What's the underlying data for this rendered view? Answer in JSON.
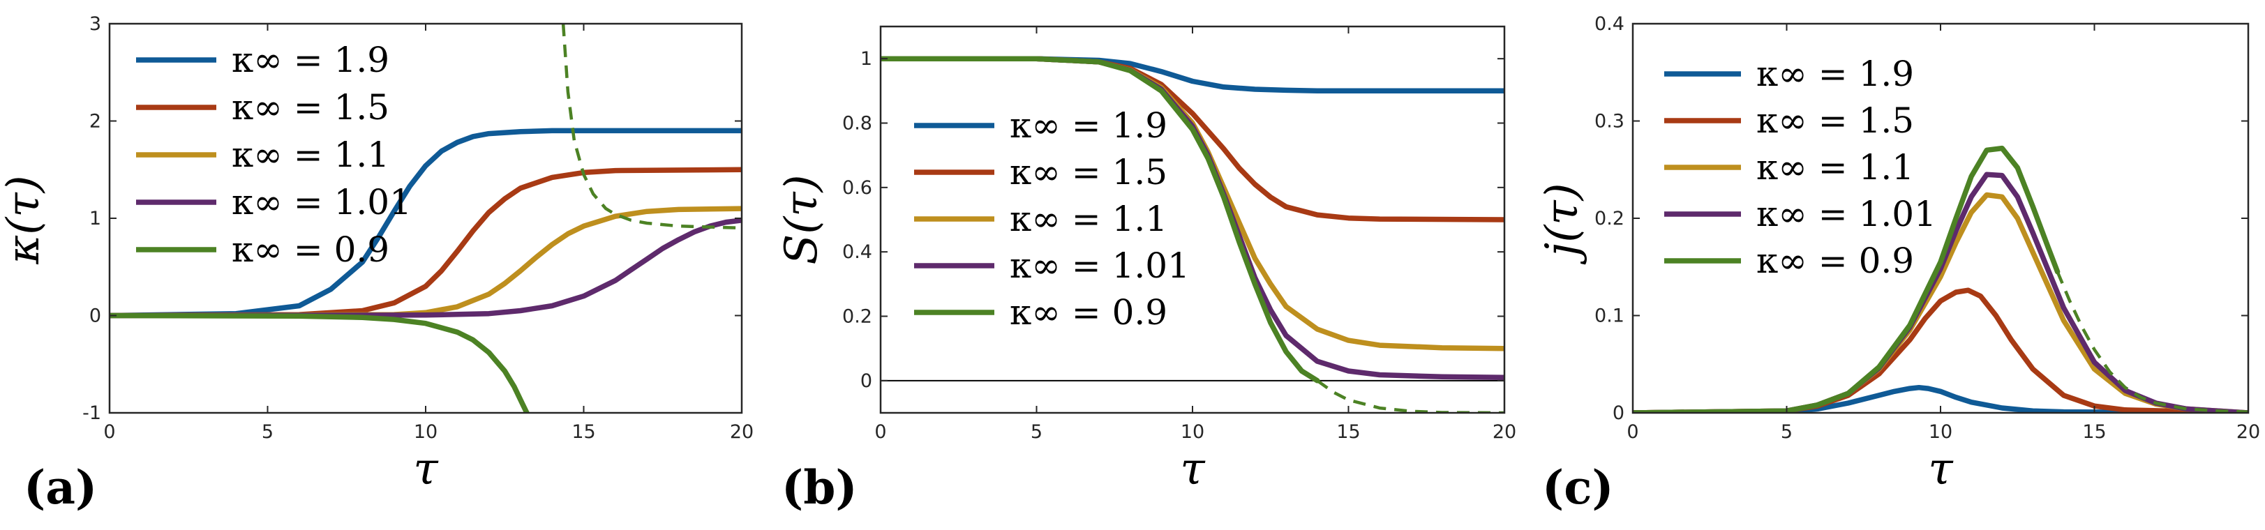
{
  "colors": {
    "kinf_1_9": "#0F5A96",
    "kinf_1_5": "#A83A14",
    "kinf_1_1": "#BE8F1E",
    "kinf_1_01": "#5E2A6C",
    "kinf_0_9": "#4C8224"
  },
  "chart_data": [
    {
      "panel_label": "(a)",
      "type": "line",
      "xlabel": "τ",
      "ylabel": "κ(τ)",
      "xlim": [
        0,
        20
      ],
      "ylim": [
        -1,
        3
      ],
      "xticks": [
        0,
        5,
        10,
        15,
        20
      ],
      "yticks": [
        -1,
        0,
        1,
        2,
        3
      ],
      "legend_position": "top-left",
      "series": [
        {
          "name": "κ∞ = 1.9",
          "color_key": "kinf_1_9",
          "style": "solid",
          "x": [
            0,
            4,
            6,
            7,
            8,
            8.5,
            9,
            9.5,
            10,
            10.5,
            11,
            11.5,
            12,
            13,
            14,
            20
          ],
          "y": [
            0,
            0.02,
            0.1,
            0.27,
            0.55,
            0.8,
            1.07,
            1.33,
            1.54,
            1.69,
            1.78,
            1.84,
            1.87,
            1.89,
            1.9,
            1.9
          ]
        },
        {
          "name": "κ∞ = 1.5",
          "color_key": "kinf_1_5",
          "style": "solid",
          "x": [
            0,
            6,
            8,
            9,
            10,
            10.5,
            11,
            11.5,
            12,
            12.5,
            13,
            14,
            15,
            16,
            20
          ],
          "y": [
            0,
            0.01,
            0.05,
            0.13,
            0.3,
            0.46,
            0.66,
            0.87,
            1.06,
            1.2,
            1.31,
            1.42,
            1.47,
            1.49,
            1.5
          ]
        },
        {
          "name": "κ∞ = 1.1",
          "color_key": "kinf_1_1",
          "style": "solid",
          "x": [
            0,
            9,
            10,
            11,
            12,
            12.5,
            13,
            13.5,
            14,
            14.5,
            15,
            16,
            17,
            18,
            20
          ],
          "y": [
            0,
            0.01,
            0.03,
            0.09,
            0.22,
            0.33,
            0.46,
            0.6,
            0.73,
            0.84,
            0.92,
            1.02,
            1.07,
            1.09,
            1.1
          ]
        },
        {
          "name": "κ∞ = 1.01",
          "color_key": "kinf_1_01",
          "style": "solid",
          "x": [
            0,
            10,
            12,
            13,
            14,
            15,
            16,
            16.5,
            17,
            17.5,
            18,
            18.5,
            19,
            19.5,
            20
          ],
          "y": [
            0,
            0.005,
            0.02,
            0.05,
            0.1,
            0.2,
            0.36,
            0.47,
            0.58,
            0.69,
            0.78,
            0.86,
            0.92,
            0.96,
            0.98
          ]
        },
        {
          "name": "κ∞ = 0.9",
          "color_key": "kinf_0_9",
          "style": "solid",
          "x": [
            0,
            6,
            8,
            9,
            10,
            11,
            11.5,
            12,
            12.5,
            12.8,
            13.05,
            13.2
          ],
          "y": [
            0,
            -0.005,
            -0.02,
            -0.04,
            -0.08,
            -0.17,
            -0.25,
            -0.38,
            -0.57,
            -0.73,
            -0.9,
            -1.0
          ]
        },
        {
          "name": "",
          "color_key": "kinf_0_9",
          "style": "dashed",
          "x": [
            14.35,
            14.5,
            14.7,
            15,
            15.3,
            15.7,
            16,
            16.5,
            17,
            18,
            20
          ],
          "y": [
            3.0,
            2.3,
            1.8,
            1.45,
            1.25,
            1.1,
            1.04,
            0.98,
            0.95,
            0.92,
            0.9
          ]
        }
      ]
    },
    {
      "panel_label": "(b)",
      "type": "line",
      "xlabel": "τ",
      "ylabel": "S(τ)",
      "xlim": [
        0,
        20
      ],
      "ylim": [
        -0.1,
        1.1
      ],
      "xticks": [
        0,
        5,
        10,
        15,
        20
      ],
      "yticks": [
        0,
        0.2,
        0.4,
        0.6,
        0.8,
        1
      ],
      "zero_line": true,
      "legend_position": "middle-left",
      "series": [
        {
          "name": "κ∞ = 1.9",
          "color_key": "kinf_1_9",
          "style": "solid",
          "x": [
            0,
            5,
            7,
            8,
            9,
            10,
            11,
            12,
            13,
            14,
            20
          ],
          "y": [
            1,
            1,
            0.995,
            0.985,
            0.96,
            0.93,
            0.912,
            0.905,
            0.902,
            0.9,
            0.9
          ]
        },
        {
          "name": "κ∞ = 1.5",
          "color_key": "kinf_1_5",
          "style": "solid",
          "x": [
            0,
            5,
            7,
            8,
            9,
            10,
            11,
            11.5,
            12,
            12.5,
            13,
            14,
            15,
            16,
            20
          ],
          "y": [
            1,
            1,
            0.99,
            0.97,
            0.92,
            0.83,
            0.72,
            0.66,
            0.61,
            0.57,
            0.54,
            0.515,
            0.505,
            0.502,
            0.5
          ]
        },
        {
          "name": "κ∞ = 1.1",
          "color_key": "kinf_1_1",
          "style": "solid",
          "x": [
            0,
            5,
            7,
            8,
            9,
            10,
            10.5,
            11,
            11.5,
            12,
            12.5,
            13,
            14,
            15,
            16,
            18,
            20
          ],
          "y": [
            1,
            1,
            0.99,
            0.965,
            0.91,
            0.8,
            0.71,
            0.6,
            0.49,
            0.38,
            0.3,
            0.23,
            0.16,
            0.125,
            0.11,
            0.102,
            0.1
          ]
        },
        {
          "name": "κ∞ = 1.01",
          "color_key": "kinf_1_01",
          "style": "solid",
          "x": [
            0,
            5,
            7,
            8,
            9,
            10,
            10.5,
            11,
            11.5,
            12,
            12.5,
            13,
            14,
            15,
            16,
            18,
            20
          ],
          "y": [
            1,
            1,
            0.99,
            0.964,
            0.905,
            0.79,
            0.7,
            0.58,
            0.45,
            0.32,
            0.22,
            0.14,
            0.06,
            0.03,
            0.018,
            0.012,
            0.01
          ]
        },
        {
          "name": "κ∞ = 0.9",
          "color_key": "kinf_0_9",
          "style": "solid",
          "x": [
            0,
            5,
            7,
            8,
            9,
            10,
            10.5,
            11,
            11.5,
            12,
            12.5,
            13,
            13.5,
            14
          ],
          "y": [
            1,
            1,
            0.99,
            0.963,
            0.9,
            0.78,
            0.69,
            0.57,
            0.43,
            0.3,
            0.18,
            0.09,
            0.03,
            0.0
          ]
        },
        {
          "name": "",
          "color_key": "kinf_0_9",
          "style": "dashed",
          "x": [
            14,
            14.5,
            15,
            16,
            17,
            18,
            20
          ],
          "y": [
            0.0,
            -0.035,
            -0.06,
            -0.085,
            -0.095,
            -0.099,
            -0.1
          ]
        }
      ]
    },
    {
      "panel_label": "(c)",
      "type": "line",
      "xlabel": "τ",
      "ylabel": "j(τ)",
      "xlim": [
        0,
        20
      ],
      "ylim": [
        0,
        0.4
      ],
      "xticks": [
        0,
        5,
        10,
        15,
        20
      ],
      "yticks": [
        0,
        0.1,
        0.2,
        0.3,
        0.4
      ],
      "legend_position": "top-left",
      "series": [
        {
          "name": "κ∞ = 1.9",
          "color_key": "kinf_1_9",
          "style": "solid",
          "x": [
            0,
            5,
            6,
            7,
            8,
            8.5,
            9,
            9.3,
            9.6,
            10,
            10.5,
            11,
            12,
            13,
            14,
            20
          ],
          "y": [
            0,
            0.001,
            0.004,
            0.01,
            0.018,
            0.022,
            0.025,
            0.026,
            0.025,
            0.022,
            0.016,
            0.011,
            0.005,
            0.002,
            0.001,
            0
          ]
        },
        {
          "name": "κ∞ = 1.5",
          "color_key": "kinf_1_5",
          "style": "solid",
          "x": [
            0,
            5,
            6,
            7,
            8,
            9,
            9.5,
            10,
            10.5,
            10.9,
            11.3,
            11.8,
            12.3,
            13,
            14,
            15,
            16,
            20
          ],
          "y": [
            0,
            0.002,
            0.007,
            0.018,
            0.04,
            0.075,
            0.097,
            0.115,
            0.124,
            0.126,
            0.12,
            0.1,
            0.075,
            0.045,
            0.018,
            0.007,
            0.003,
            0
          ]
        },
        {
          "name": "κ∞ = 1.1",
          "color_key": "kinf_1_1",
          "style": "solid",
          "x": [
            0,
            5,
            6,
            7,
            8,
            9,
            10,
            10.5,
            11,
            11.5,
            12,
            12.5,
            13,
            14,
            15,
            16,
            17,
            18,
            20
          ],
          "y": [
            0,
            0.002,
            0.008,
            0.02,
            0.045,
            0.085,
            0.14,
            0.175,
            0.206,
            0.224,
            0.222,
            0.2,
            0.165,
            0.095,
            0.045,
            0.02,
            0.009,
            0.004,
            0
          ]
        },
        {
          "name": "κ∞ = 1.01",
          "color_key": "kinf_1_01",
          "style": "solid",
          "x": [
            0,
            5,
            6,
            7,
            8,
            9,
            10,
            10.5,
            11,
            11.5,
            12,
            12.5,
            13,
            14,
            15,
            16,
            17,
            18,
            20
          ],
          "y": [
            0,
            0.002,
            0.008,
            0.02,
            0.046,
            0.088,
            0.148,
            0.187,
            0.222,
            0.245,
            0.244,
            0.222,
            0.185,
            0.108,
            0.052,
            0.023,
            0.01,
            0.004,
            0
          ]
        },
        {
          "name": "κ∞ = 0.9",
          "color_key": "kinf_0_9",
          "style": "solid",
          "x": [
            0,
            5,
            6,
            7,
            8,
            9,
            10,
            10.5,
            11,
            11.5,
            12,
            12.5,
            13,
            13.5,
            13.8
          ],
          "y": [
            0,
            0.002,
            0.008,
            0.02,
            0.047,
            0.09,
            0.155,
            0.2,
            0.243,
            0.27,
            0.272,
            0.252,
            0.212,
            0.17,
            0.145
          ]
        },
        {
          "name": "",
          "color_key": "kinf_0_9",
          "style": "dashed",
          "x": [
            13.8,
            14.2,
            14.6,
            15,
            15.5,
            16,
            16.5,
            17,
            18,
            19,
            20
          ],
          "y": [
            0.145,
            0.115,
            0.088,
            0.065,
            0.042,
            0.026,
            0.016,
            0.01,
            0.004,
            0.002,
            0.001
          ]
        }
      ]
    }
  ]
}
